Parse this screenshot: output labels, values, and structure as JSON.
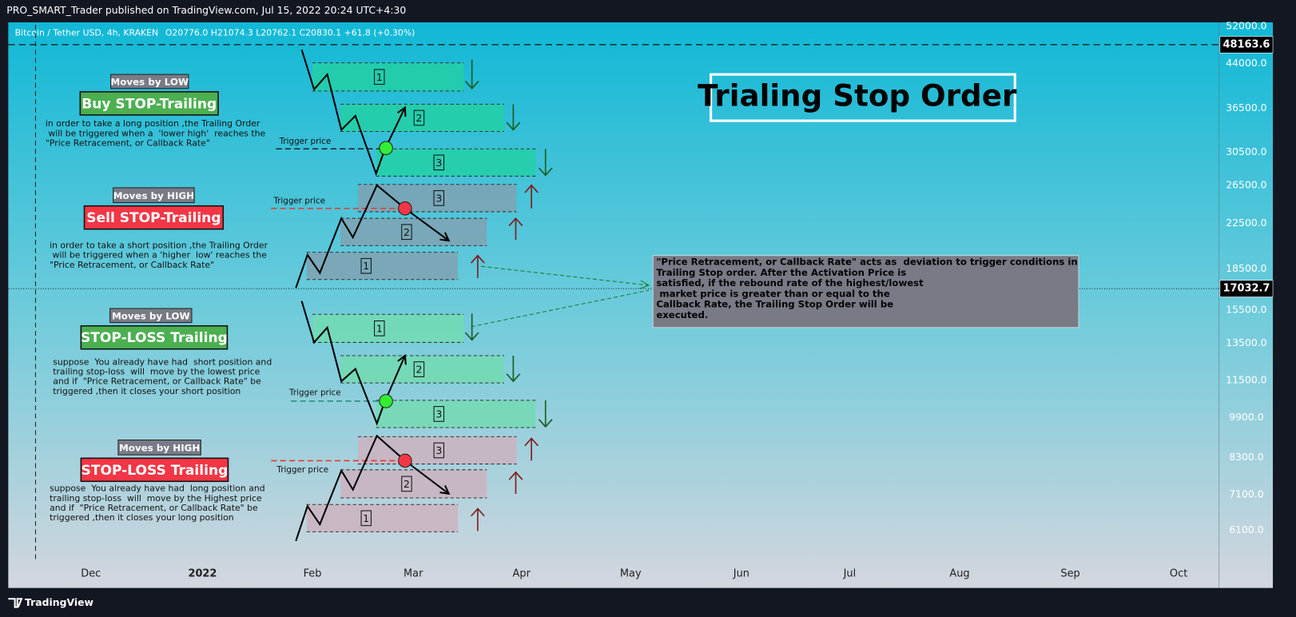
{
  "header": {
    "publisher_line": "PRO_SMART_Trader published on TradingView.com, Jul 15, 2022 20:24 UTC+4:30"
  },
  "symbol": {
    "name": "Bitcoin / Tether USD, 4h, KRAKEN",
    "ohlc": "O20776.0 H21074.3 L20762.1 C20830.1 +61.8 (+0.30%)"
  },
  "price_axis": {
    "labels": [
      "52000.0",
      "44000.0",
      "36500.0",
      "30500.0",
      "26500.0",
      "22500.0",
      "18500.0",
      "15500.0",
      "13500.0",
      "11500.0",
      "9900.0",
      "8300.0",
      "7100.0",
      "6100.0"
    ],
    "line_price": "48163.6",
    "last_price": "17032.7"
  },
  "time_axis": {
    "labels": [
      "Dec",
      "2022",
      "Feb",
      "Mar",
      "Apr",
      "May",
      "Jun",
      "Jul",
      "Aug",
      "Sep",
      "Oct"
    ]
  },
  "title": "Trialing Stop Order",
  "info_box": {
    "lines": [
      "\"Price Retracement, or Callback Rate\" acts as  deviation to trigger conditions in",
      "Trailing Stop order. After the Activation Price is",
      "satisfied, if the rebound rate of the highest/lowest",
      " market price is greater than or equal to the",
      "Callback Rate, the Trailing Stop Order will be",
      "executed."
    ]
  },
  "annotations": [
    {
      "tag": "Moves by LOW",
      "heading": "Buy STOP-Trailing",
      "lines": [
        "in order to take a long position ,the Trailing Order",
        " will be triggered when a  'lower high'  reaches the",
        "\"Price Retracement, or Callback Rate\""
      ],
      "trigger": "Trigger price",
      "boxes": [
        "1",
        "2",
        "3"
      ]
    },
    {
      "tag": "Moves by HIGH",
      "heading": "Sell STOP-Trailing",
      "lines": [
        "in order to take a short position ,the Trailing Order",
        " will be triggered when a 'higher  low' reaches the",
        "\"Price Retracement, or Callback Rate\""
      ],
      "trigger": "Trigger price",
      "boxes": [
        "3",
        "2",
        "1"
      ]
    },
    {
      "tag": "Moves by LOW",
      "heading": "STOP-LOSS Trailing",
      "lines": [
        "suppose  You already have had  short position and",
        "trailing stop-loss  will  move by the lowest price",
        "and if  \"Price Retracement, or Callback Rate\" be",
        "triggered ,then it closes your short position"
      ],
      "trigger": "Trigger price",
      "boxes": [
        "1",
        "2",
        "3"
      ]
    },
    {
      "tag": "Moves by HIGH",
      "heading": "STOP-LOSS Trailing",
      "lines": [
        "suppose  You already have had  long position and",
        "trailing stop-loss  will  move by the Highest price",
        "and if  \"Price Retracement, or Callback Rate\" be",
        "triggered ,then it closes your long position"
      ],
      "trigger": "Trigger price",
      "boxes": [
        "3",
        "2",
        "1"
      ]
    }
  ],
  "footer": {
    "brand": "TradingView"
  }
}
